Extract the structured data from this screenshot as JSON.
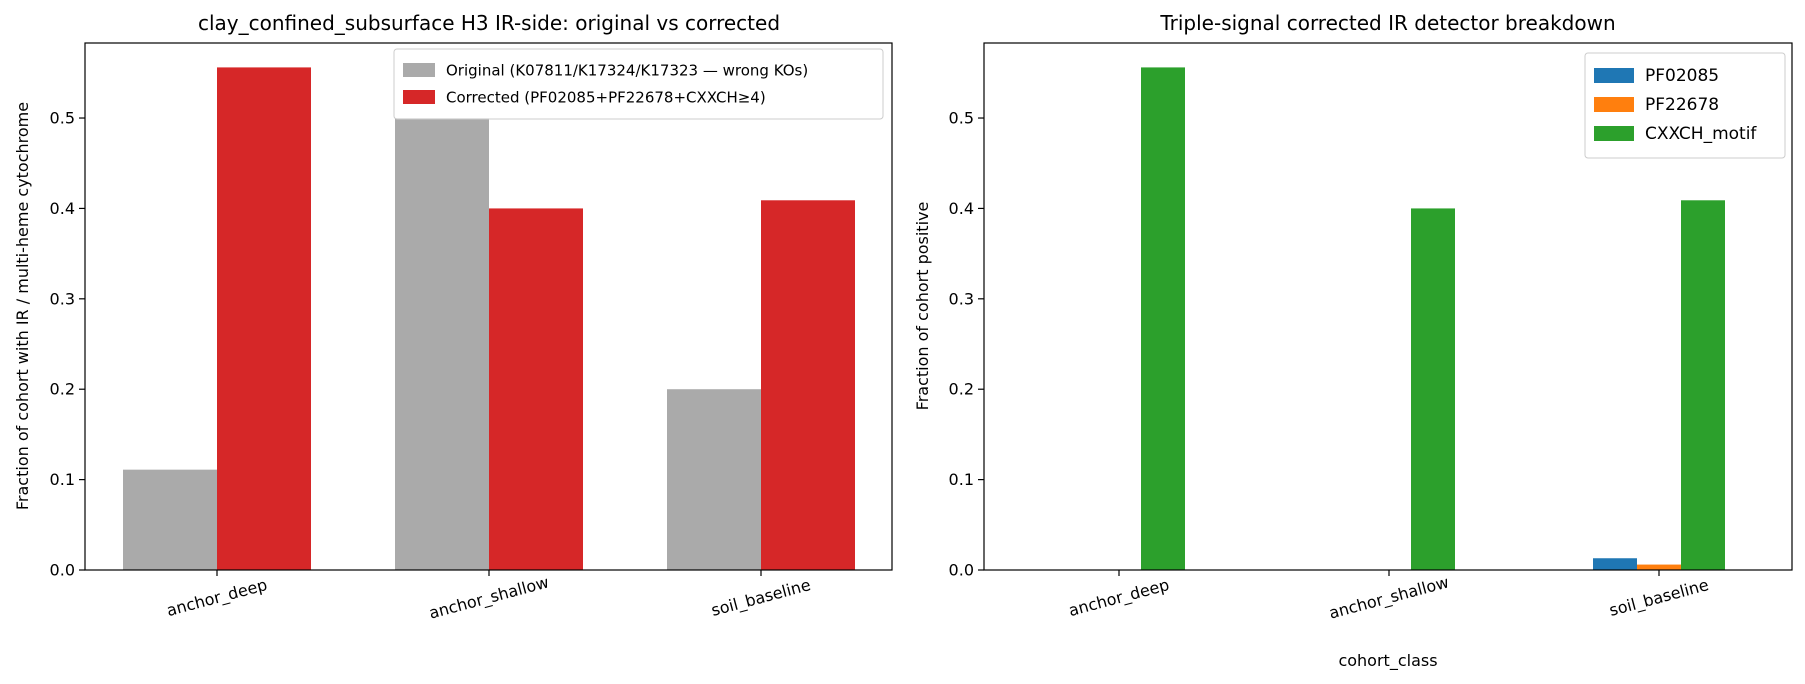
{
  "chart_data": [
    {
      "type": "bar",
      "title": "clay_confined_subsurface H3 IR-side: original vs corrected",
      "xlabel": "",
      "ylabel": "Fraction of cohort with IR / multi-heme cytochrome",
      "categories": [
        "anchor_deep",
        "anchor_shallow",
        "soil_baseline"
      ],
      "series": [
        {
          "name": "Original (K07811/K17324/K17323 — wrong KOs)",
          "color": "#aaaaaa",
          "values": [
            0.111,
            0.5,
            0.2
          ]
        },
        {
          "name": "Corrected (PF02085+PF22678+CXXCH≥4)",
          "color": "#d62728",
          "values": [
            0.556,
            0.4,
            0.409
          ]
        }
      ],
      "ylim": [
        0,
        0.583
      ],
      "yticks": [
        "0.0",
        "0.1",
        "0.2",
        "0.3",
        "0.4",
        "0.5"
      ],
      "grid": false,
      "legend_position": "top-right"
    },
    {
      "type": "bar",
      "title": "Triple-signal corrected IR detector breakdown",
      "xlabel": "cohort_class",
      "ylabel": "Fraction of cohort positive",
      "categories": [
        "anchor_deep",
        "anchor_shallow",
        "soil_baseline"
      ],
      "series": [
        {
          "name": "PF02085",
          "color": "#1f77b4",
          "values": [
            0,
            0,
            0.013
          ]
        },
        {
          "name": "PF22678",
          "color": "#ff7f0e",
          "values": [
            0,
            0,
            0.006
          ]
        },
        {
          "name": "CXXCH_motif",
          "color": "#2ca02c",
          "values": [
            0.556,
            0.4,
            0.409
          ]
        }
      ],
      "ylim": [
        0,
        0.583
      ],
      "yticks": [
        "0.0",
        "0.1",
        "0.2",
        "0.3",
        "0.4",
        "0.5"
      ],
      "grid": false,
      "legend_position": "top-right"
    }
  ]
}
